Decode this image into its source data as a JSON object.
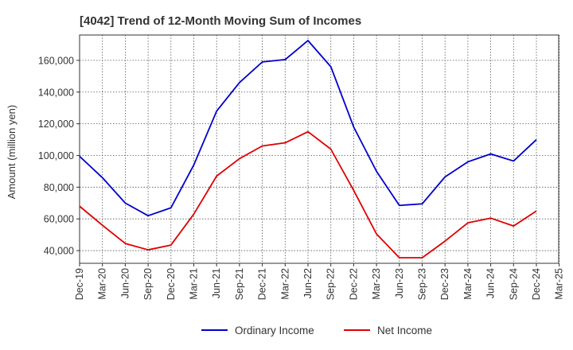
{
  "chart_data": {
    "type": "line",
    "title": "[4042]  Trend of 12-Month Moving Sum of Incomes",
    "xlabel": "",
    "ylabel": "Amount (million yen)",
    "ylim": [
      32000,
      176000
    ],
    "yticks": [
      40000,
      60000,
      80000,
      100000,
      120000,
      140000,
      160000
    ],
    "ytick_labels": [
      "40,000",
      "60,000",
      "80,000",
      "100,000",
      "120,000",
      "140,000",
      "160,000"
    ],
    "categories": [
      "Dec-19",
      "Mar-20",
      "Jun-20",
      "Sep-20",
      "Dec-20",
      "Mar-21",
      "Jun-21",
      "Sep-21",
      "Dec-21",
      "Mar-22",
      "Jun-22",
      "Sep-22",
      "Dec-22",
      "Mar-23",
      "Jun-23",
      "Sep-23",
      "Dec-23",
      "Mar-24",
      "Jun-24",
      "Sep-24",
      "Dec-24",
      "Mar-25"
    ],
    "grid": true,
    "legend_position": "bottom",
    "series": [
      {
        "name": "Ordinary Income",
        "color": "#0000cc",
        "values": [
          99500,
          86000,
          70000,
          62000,
          67000,
          94000,
          128000,
          146000,
          159000,
          160500,
          172500,
          156000,
          118000,
          90000,
          68500,
          69500,
          86500,
          96000,
          101000,
          96500,
          110000,
          null
        ]
      },
      {
        "name": "Net Income",
        "color": "#dd0000",
        "values": [
          68000,
          56000,
          44500,
          40500,
          43500,
          63000,
          87000,
          98000,
          106000,
          108000,
          115000,
          104000,
          78000,
          50500,
          35500,
          35500,
          46000,
          57500,
          60500,
          55500,
          65000,
          null
        ]
      }
    ]
  }
}
